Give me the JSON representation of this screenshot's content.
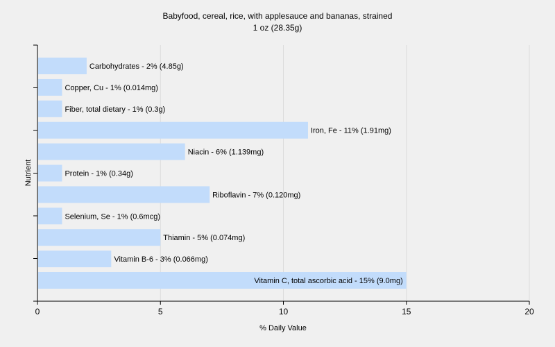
{
  "chart_data": {
    "type": "bar",
    "orientation": "horizontal",
    "title": "Babyfood, cereal, rice, with applesauce and bananas, strained",
    "subtitle": "1 oz (28.35g)",
    "xlabel": "% Daily Value",
    "ylabel": "Nutrient",
    "xlim": [
      0,
      20
    ],
    "xticks": [
      0,
      5,
      10,
      15,
      20
    ],
    "grid": true,
    "bar_color": "#c2dcfb",
    "categories": [
      "Carbohydrates",
      "Copper, Cu",
      "Fiber, total dietary",
      "Iron, Fe",
      "Niacin",
      "Protein",
      "Riboflavin",
      "Selenium, Se",
      "Thiamin",
      "Vitamin B-6",
      "Vitamin C, total ascorbic acid"
    ],
    "values": [
      2,
      1,
      1,
      11,
      6,
      1,
      7,
      1,
      5,
      3,
      15
    ],
    "labels": [
      "Carbohydrates - 2% (4.85g)",
      "Copper, Cu - 1% (0.014mg)",
      "Fiber, total dietary - 1% (0.3g)",
      "Iron, Fe - 11% (1.91mg)",
      "Niacin - 6% (1.139mg)",
      "Protein - 1% (0.34g)",
      "Riboflavin - 7% (0.120mg)",
      "Selenium, Se - 1% (0.6mcg)",
      "Thiamin - 5% (0.074mg)",
      "Vitamin B-6 - 3% (0.066mg)",
      "Vitamin C, total ascorbic acid - 15% (9.0mg)"
    ]
  }
}
